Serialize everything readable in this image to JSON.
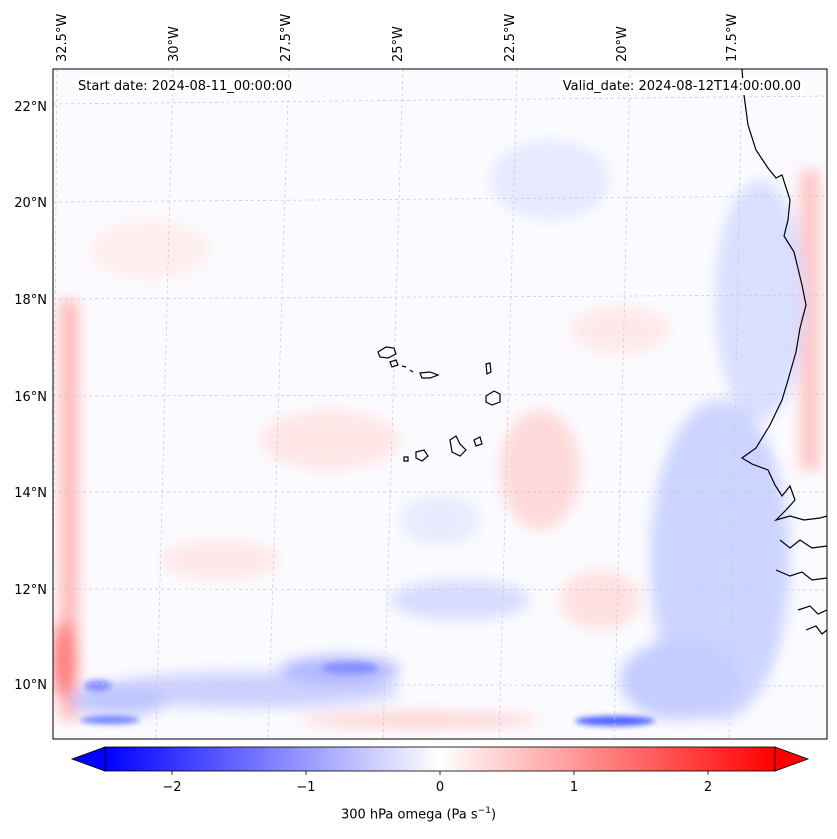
{
  "map": {
    "start_label": "Start date: 2024-08-11_00:00:00",
    "valid_label": "Valid_date: 2024-08-12T14:00:00.00",
    "lon_labels": [
      "32.5°W",
      "30°W",
      "27.5°W",
      "25°W",
      "22.5°W",
      "20°W",
      "17.5°W"
    ],
    "lat_labels": [
      "22°N",
      "20°N",
      "18°N",
      "16°N",
      "14°N",
      "12°N",
      "10°N"
    ],
    "colorbar": {
      "title_prefix": "300 hPa omega (Pa s",
      "title_exp": "−1",
      "title_suffix": ")",
      "ticks": [
        "−2",
        "−1",
        "0",
        "1",
        "2"
      ],
      "range": [
        -2.75,
        2.75
      ],
      "low_color": "#0000ff",
      "mid_color": "#ffffff",
      "high_color": "#ff0000"
    },
    "grid": true,
    "coastline_color": "#000000"
  }
}
